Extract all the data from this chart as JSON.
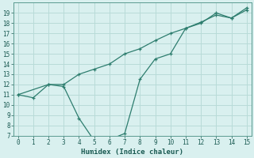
{
  "line1_x": [
    0,
    1,
    2,
    3,
    4,
    5,
    6,
    7,
    8,
    9,
    10,
    11,
    12,
    13,
    14,
    15
  ],
  "line1_y": [
    11.0,
    10.7,
    12.0,
    12.0,
    13.0,
    13.5,
    14.0,
    15.0,
    15.5,
    16.3,
    17.0,
    17.5,
    18.1,
    18.8,
    18.5,
    19.3
  ],
  "line2_x": [
    0,
    2,
    3,
    4,
    5,
    6,
    7,
    8,
    9,
    10,
    11,
    12,
    13,
    14,
    15
  ],
  "line2_y": [
    11.0,
    12.0,
    11.8,
    8.7,
    6.5,
    6.6,
    7.2,
    12.5,
    14.5,
    15.0,
    17.5,
    18.0,
    19.0,
    18.5,
    19.5
  ],
  "color": "#2d7d6e",
  "bg_color": "#d9f0ef",
  "grid_color": "#b8dbd8",
  "xlabel": "Humidex (Indice chaleur)",
  "ylim": [
    7,
    20
  ],
  "xlim": [
    -0.3,
    15.3
  ],
  "yticks": [
    7,
    8,
    9,
    10,
    11,
    12,
    13,
    14,
    15,
    16,
    17,
    18,
    19
  ],
  "xticks": [
    0,
    1,
    2,
    3,
    4,
    5,
    6,
    7,
    8,
    9,
    10,
    11,
    12,
    13,
    14,
    15
  ]
}
